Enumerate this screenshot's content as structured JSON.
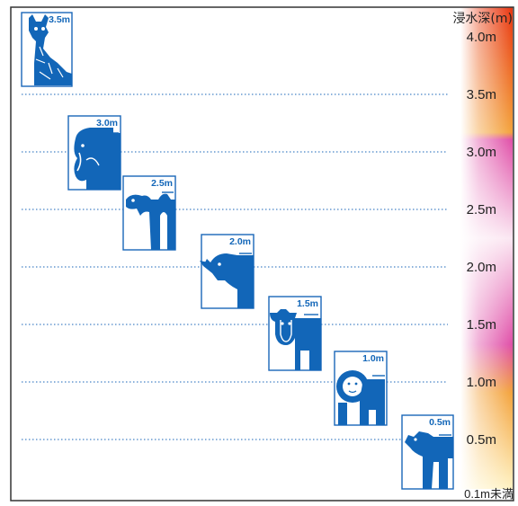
{
  "axis_title": "浸水深(m)",
  "colors": {
    "band_top": "#e8340f",
    "band_orange": "#f3a23a",
    "band_pink": "#e04fa8",
    "band_pale_pink": "#fbe7f2",
    "band_bottom": "#fff2c2",
    "dotted_line": "#1a66b8",
    "animal_blue": "#1266b8"
  },
  "levels": [
    {
      "value": 4.0,
      "label": "4.0m"
    },
    {
      "value": 3.5,
      "label": "3.5m"
    },
    {
      "value": 3.0,
      "label": "3.0m"
    },
    {
      "value": 2.5,
      "label": "2.5m"
    },
    {
      "value": 2.0,
      "label": "2.0m"
    },
    {
      "value": 1.5,
      "label": "1.5m"
    },
    {
      "value": 1.0,
      "label": "1.0m"
    },
    {
      "value": 0.5,
      "label": "0.5m"
    }
  ],
  "bottom_label": "0.1m未満",
  "animals": [
    {
      "name": "giraffe",
      "height_m": 3.5,
      "label": "3.5m"
    },
    {
      "name": "elephant",
      "height_m": 3.0,
      "label": "3.0m"
    },
    {
      "name": "camel",
      "height_m": 2.5,
      "label": "2.5m"
    },
    {
      "name": "rhinoceros",
      "height_m": 2.0,
      "label": "2.0m"
    },
    {
      "name": "cow",
      "height_m": 1.5,
      "label": "1.5m"
    },
    {
      "name": "lion",
      "height_m": 1.0,
      "label": "1.0m"
    },
    {
      "name": "wild-boar",
      "height_m": 0.5,
      "label": "0.5m"
    }
  ]
}
